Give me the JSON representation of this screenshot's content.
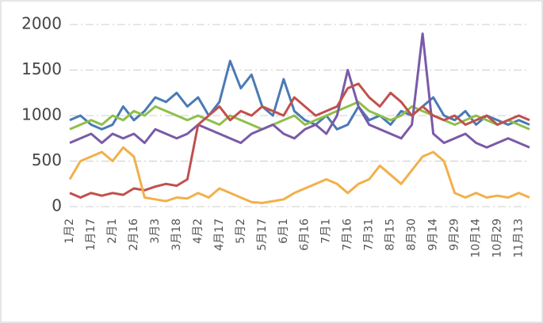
{
  "chart_data": {
    "type": "line",
    "categories": [
      "1月2",
      null,
      "1月17",
      null,
      "2月1",
      null,
      "2月16",
      null,
      "3月3",
      null,
      "3月18",
      null,
      "4月2",
      null,
      "4月17",
      null,
      "5月2",
      null,
      "5月17",
      null,
      "6月1",
      null,
      "6月16",
      null,
      "7月1",
      null,
      "7月16",
      null,
      "7月31",
      null,
      "8月15",
      null,
      "8月30",
      null,
      "9月14",
      null,
      "9月29",
      null,
      "10月14",
      null,
      "10月29",
      null,
      "11月13",
      null
    ],
    "series": [
      {
        "color": "#4a7ab5",
        "values": [
          950,
          1000,
          900,
          850,
          900,
          1100,
          950,
          1050,
          1200,
          1150,
          1250,
          1100,
          1200,
          1000,
          1150,
          1600,
          1300,
          1450,
          1100,
          1000,
          1400,
          1050,
          950,
          900,
          1000,
          850,
          900,
          1100,
          950,
          1000,
          900,
          1050,
          1000,
          1100,
          1200,
          1000,
          950,
          1050,
          900,
          1000,
          950,
          900,
          950,
          900
        ]
      },
      {
        "color": "#8fbf4a",
        "values": [
          850,
          900,
          950,
          900,
          1000,
          950,
          1050,
          1000,
          1100,
          1050,
          1000,
          950,
          1000,
          950,
          900,
          1000,
          950,
          900,
          850,
          900,
          950,
          1000,
          900,
          950,
          1000,
          1050,
          1100,
          1150,
          1050,
          1000,
          950,
          1000,
          1100,
          1050,
          1000,
          950,
          900,
          950,
          1000,
          950,
          900,
          950,
          900,
          850
        ]
      },
      {
        "color": "#7a5aa8",
        "values": [
          700,
          750,
          800,
          700,
          800,
          750,
          800,
          700,
          850,
          800,
          750,
          800,
          900,
          850,
          800,
          750,
          700,
          800,
          850,
          900,
          800,
          750,
          850,
          900,
          800,
          1000,
          1500,
          1100,
          900,
          850,
          800,
          750,
          900,
          1900,
          800,
          700,
          750,
          800,
          700,
          650,
          700,
          750,
          700,
          650
        ]
      },
      {
        "color": "#c0504d",
        "values": [
          150,
          100,
          150,
          120,
          150,
          130,
          200,
          180,
          220,
          250,
          230,
          300,
          900,
          1000,
          1100,
          950,
          1050,
          1000,
          1100,
          1050,
          1000,
          1200,
          1100,
          1000,
          1050,
          1100,
          1300,
          1350,
          1200,
          1100,
          1250,
          1150,
          1000,
          1100,
          1000,
          950,
          1000,
          900,
          950,
          1000,
          900,
          950,
          1000,
          950
        ]
      },
      {
        "color": "#f2b04a",
        "values": [
          300,
          500,
          550,
          600,
          500,
          650,
          550,
          100,
          80,
          60,
          100,
          90,
          150,
          100,
          200,
          150,
          100,
          50,
          40,
          60,
          80,
          150,
          200,
          250,
          300,
          250,
          150,
          250,
          300,
          450,
          350,
          250,
          400,
          550,
          600,
          500,
          150,
          100,
          150,
          100,
          120,
          100,
          150,
          100
        ]
      }
    ],
    "ylim": [
      0,
      2000
    ],
    "yticks": [
      0,
      500,
      1000,
      1500,
      2000
    ],
    "grid": true
  }
}
